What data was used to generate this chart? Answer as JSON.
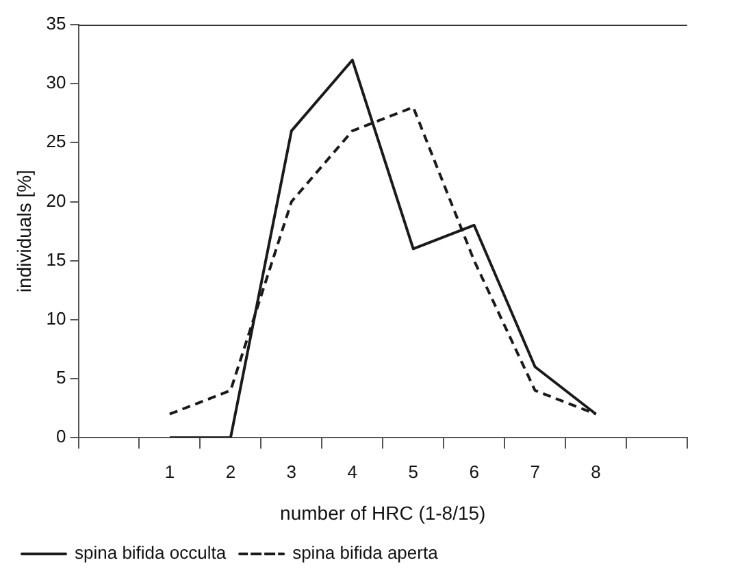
{
  "chart_data": {
    "type": "line",
    "xlabel": "number of HRC (1-8/15)",
    "ylabel": "individuals [%]",
    "categories": [
      null,
      "1",
      "2",
      "3",
      "4",
      "5",
      "6",
      "7",
      "8",
      null
    ],
    "series": [
      {
        "name": "spina bifida occulta",
        "color": "#1a1a1a",
        "line_style": "solid",
        "values": [
          null,
          0,
          0,
          26,
          32,
          16,
          18,
          6,
          2,
          null
        ]
      },
      {
        "name": "spina bifida aperta",
        "color": "#1a1a1a",
        "line_style": "dashed",
        "values": [
          null,
          2,
          4,
          20,
          26,
          28,
          15,
          4,
          2,
          null
        ]
      }
    ],
    "ylim": [
      0,
      35
    ],
    "yticks": [
      0,
      5,
      10,
      15,
      20,
      25,
      30,
      35
    ],
    "grid": false,
    "legend": "bottom",
    "marker": "none"
  }
}
